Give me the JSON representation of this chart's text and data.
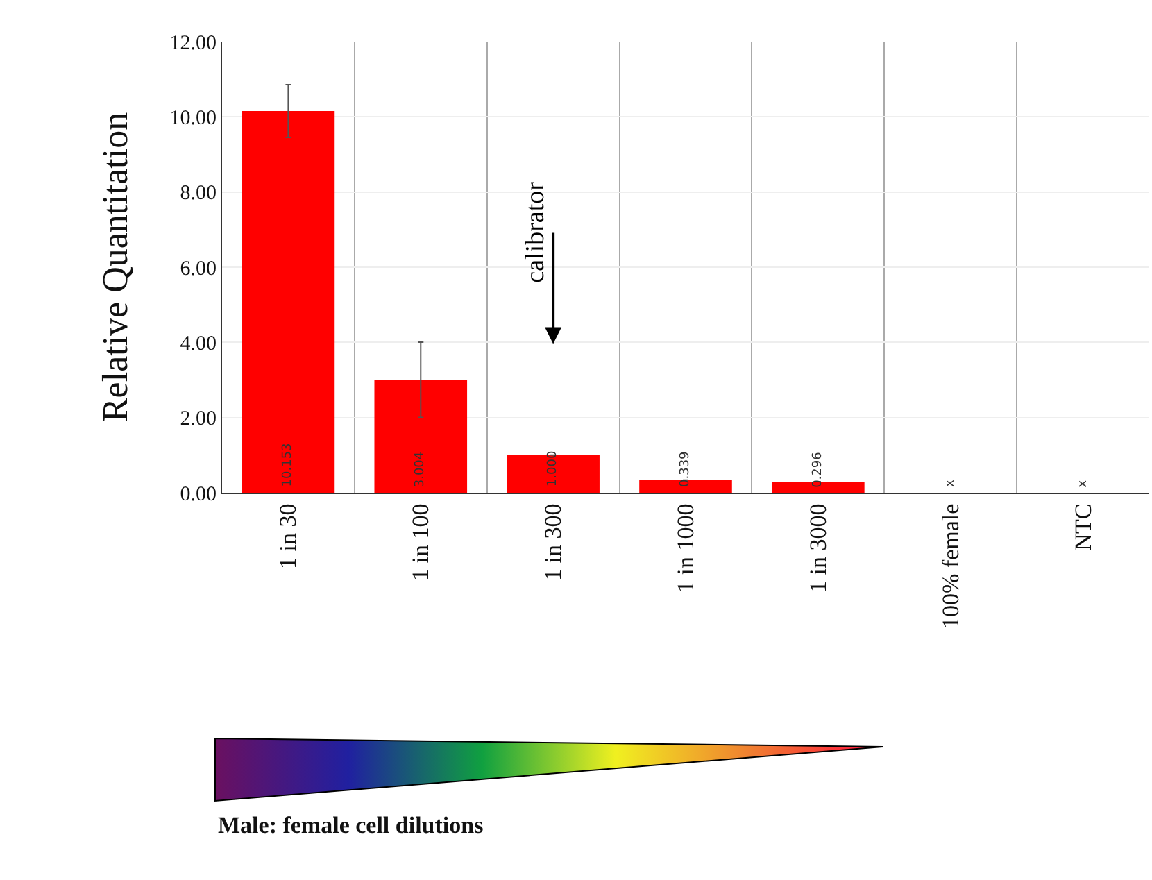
{
  "chart_data": {
    "type": "bar",
    "ylabel": "Relative Quantitation",
    "categories": [
      "1 in 30",
      "1 in 100",
      "1 in 300",
      "1 in 1000",
      "1 in 3000",
      "100% female",
      "NTC"
    ],
    "values": [
      10.153,
      3.004,
      1.0,
      0.339,
      0.296,
      null,
      null
    ],
    "value_labels": [
      "10.153",
      "3.004",
      "1.000",
      "0.339",
      "0.296",
      "x",
      "x"
    ],
    "errors": [
      0.7,
      1.0,
      null,
      null,
      null,
      null,
      null
    ],
    "color": "#ff0000",
    "ylim": [
      0,
      12
    ],
    "yticks": [
      {
        "value": 0,
        "label": "0.00"
      },
      {
        "value": 2,
        "label": "2.00"
      },
      {
        "value": 4,
        "label": "4.00"
      },
      {
        "value": 6,
        "label": "6.00"
      },
      {
        "value": 8,
        "label": "8.00"
      },
      {
        "value": 10,
        "label": "10.00"
      },
      {
        "value": 12,
        "label": "12.00"
      }
    ],
    "grid": true,
    "annotations": [
      "calibrator",
      "Male: female cell dilutions"
    ]
  }
}
